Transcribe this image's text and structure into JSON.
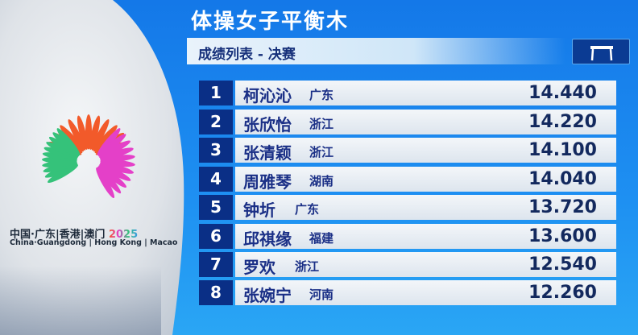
{
  "header": {
    "title": "体操女子平衡木",
    "subtitle": "成绩列表 - 决赛",
    "event_icon": "balance-beam-icon"
  },
  "logo": {
    "cn": "中国·广东|香港|澳门",
    "year": "2025",
    "en": "China·Guangdong | Hong Kong | Macao",
    "colors": [
      "#f25a2a",
      "#35c27a",
      "#e440c8"
    ]
  },
  "results": [
    {
      "rank": "1",
      "name": "柯沁沁",
      "region": "广东",
      "score": "14.440"
    },
    {
      "rank": "2",
      "name": "张欣怡",
      "region": "浙江",
      "score": "14.220"
    },
    {
      "rank": "3",
      "name": "张清颖",
      "region": "浙江",
      "score": "14.100"
    },
    {
      "rank": "4",
      "name": "周雅琴",
      "region": "湖南",
      "score": "14.040"
    },
    {
      "rank": "5",
      "name": "钟圻",
      "region": "广东",
      "score": "13.720"
    },
    {
      "rank": "6",
      "name": "邱祺缘",
      "region": "福建",
      "score": "13.600"
    },
    {
      "rank": "7",
      "name": "罗欢",
      "region": "浙江",
      "score": "12.540"
    },
    {
      "rank": "8",
      "name": "张婉宁",
      "region": "河南",
      "score": "12.260"
    }
  ]
}
